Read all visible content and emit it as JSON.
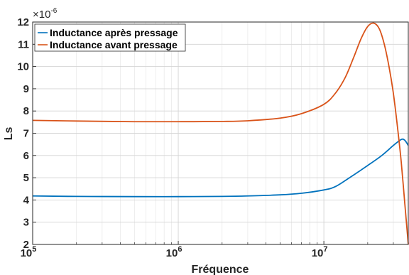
{
  "chart_data": {
    "type": "line",
    "xlabel": "Fréquence",
    "ylabel": "Ls",
    "y_exponent_label": "×10",
    "y_exponent": "-6",
    "xscale": "log",
    "xlim": [
      100000,
      38000000
    ],
    "ylim": [
      2,
      12
    ],
    "grid": true,
    "legend_location": "top-left",
    "x_ticks": [
      {
        "value": 100000,
        "base": "10",
        "exp": "5"
      },
      {
        "value": 1000000,
        "base": "10",
        "exp": "6"
      },
      {
        "value": 10000000,
        "base": "10",
        "exp": "7"
      }
    ],
    "y_ticks": [
      2,
      3,
      4,
      5,
      6,
      7,
      8,
      9,
      10,
      11,
      12
    ],
    "series": [
      {
        "name": "Inductance après pressage",
        "color": "#0072BD",
        "x": [
          100000,
          200000,
          500000,
          1000000,
          2000000,
          3000000,
          5000000,
          7000000,
          10000000,
          12000000,
          15000000,
          20000000,
          25000000,
          30000000,
          34000000,
          36000000,
          38000000
        ],
        "y": [
          4.18,
          4.16,
          4.15,
          4.15,
          4.16,
          4.18,
          4.23,
          4.3,
          4.45,
          4.6,
          5.0,
          5.55,
          6.0,
          6.45,
          6.72,
          6.68,
          6.45
        ]
      },
      {
        "name": "Inductance avant pressage",
        "color": "#D95319",
        "x": [
          100000,
          200000,
          500000,
          1000000,
          2000000,
          3000000,
          5000000,
          7000000,
          10000000,
          12000000,
          14000000,
          16000000,
          18000000,
          20000000,
          22000000,
          24000000,
          26000000,
          28000000,
          30000000,
          32000000,
          34000000,
          36000000,
          38000000
        ],
        "y": [
          7.58,
          7.55,
          7.52,
          7.52,
          7.53,
          7.56,
          7.68,
          7.88,
          8.3,
          8.8,
          9.5,
          10.4,
          11.25,
          11.8,
          11.95,
          11.7,
          11.0,
          10.0,
          8.8,
          7.3,
          5.7,
          3.8,
          2.0
        ]
      }
    ]
  }
}
